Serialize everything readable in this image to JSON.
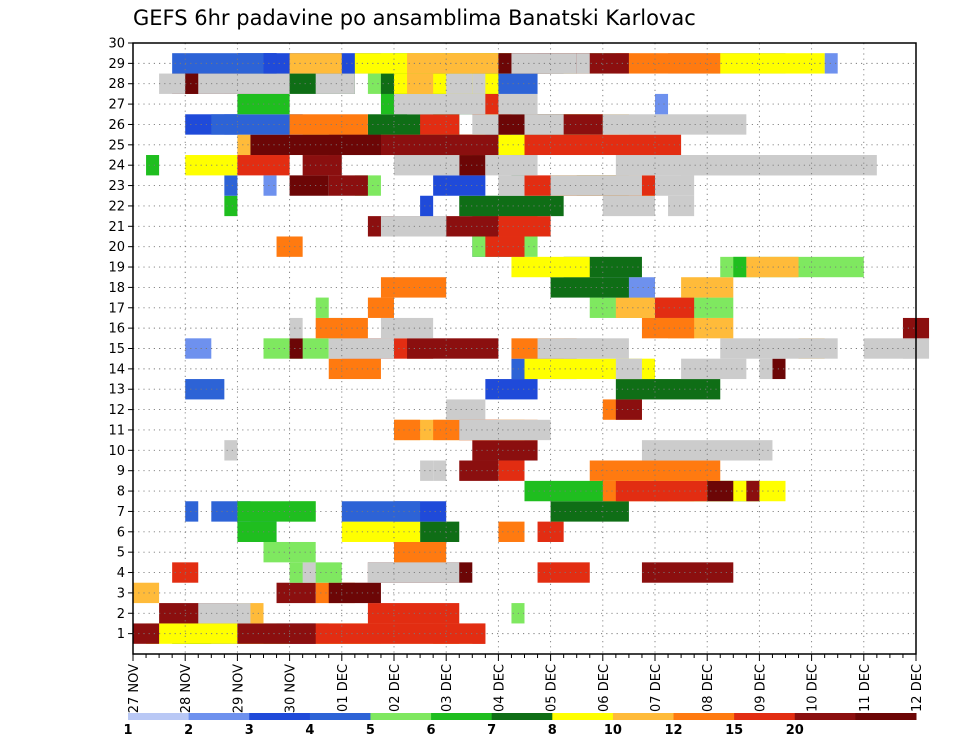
{
  "chart_data": {
    "type": "heatmap",
    "title": "GEFS 6hr padavine po ansamblima Banatski Karlovac",
    "x_tick_labels": [
      "27 NOV",
      "28 NOV",
      "29 NOV",
      "30 NOV",
      "01 DEC",
      "02 DEC",
      "03 DEC",
      "04 DEC",
      "05 DEC",
      "06 DEC",
      "07 DEC",
      "08 DEC",
      "09 DEC",
      "10 DEC",
      "11 DEC",
      "12 DEC"
    ],
    "y_tick_labels": [
      "1",
      "2",
      "3",
      "4",
      "5",
      "6",
      "7",
      "8",
      "9",
      "10",
      "11",
      "12",
      "13",
      "14",
      "15",
      "16",
      "17",
      "18",
      "19",
      "20",
      "21",
      "22",
      "23",
      "24",
      "25",
      "26",
      "27",
      "28",
      "29",
      "30"
    ],
    "x_steps_per_day": 4,
    "x_steps_total": 60,
    "y_range": [
      0,
      30
    ],
    "grid": true,
    "colorbar": {
      "labels": [
        "1",
        "2",
        "3",
        "4",
        "5",
        "6",
        "7",
        "8",
        "10",
        "12",
        "15",
        "20"
      ],
      "colors": [
        "#b9c8f5",
        "#6e91ee",
        "#1f4ad9",
        "#2d63d6",
        "#7fe860",
        "#1fbe1f",
        "#0f6e16",
        "#ffff00",
        "#ffbb3a",
        "#ff7a10",
        "#e22d12",
        "#8b0f0f",
        "#6c0606"
      ]
    },
    "cells": [
      [
        1,
        2,
        6,
        2
      ],
      [
        1,
        4,
        13,
        2
      ],
      [
        1,
        2,
        10,
        4
      ],
      [
        1,
        3,
        11,
        4
      ],
      [
        1,
        1,
        7,
        1
      ],
      [
        1,
        5,
        4,
        2
      ],
      [
        1,
        6,
        3,
        3
      ],
      [
        1,
        7,
        14,
        4
      ],
      [
        1,
        7,
        1,
        11
      ],
      [
        1,
        8,
        14,
        5
      ],
      [
        1,
        8,
        18,
        8
      ],
      [
        1,
        9,
        23,
        2
      ],
      [
        1,
        10,
        26,
        1
      ],
      [
        1,
        10,
        12,
        15
      ],
      [
        1,
        11,
        0,
        2
      ],
      [
        1,
        11,
        8,
        6
      ],
      [
        2,
        4,
        29,
        1
      ],
      [
        2,
        8,
        5,
        5
      ],
      [
        2,
        10,
        18,
        7
      ],
      [
        2,
        11,
        2,
        6
      ],
      [
        2,
        13,
        5,
        4
      ],
      [
        3,
        5,
        30,
        0
      ],
      [
        3,
        8,
        0,
        2
      ],
      [
        3,
        9,
        14,
        3
      ],
      [
        3,
        11,
        11,
        3
      ],
      [
        3,
        12,
        15,
        4
      ],
      [
        4,
        4,
        12,
        4
      ],
      [
        4,
        10,
        3,
        2
      ],
      [
        4,
        10,
        31,
        4
      ],
      [
        4,
        11,
        39,
        7
      ],
      [
        4,
        12,
        18,
        8
      ],
      [
        4,
        13,
        18,
        7
      ],
      [
        4,
        14,
        13,
        1
      ],
      [
        5,
        4,
        10,
        4
      ],
      [
        5,
        9,
        20,
        4
      ],
      [
        6,
        3,
        9,
        2
      ],
      [
        6,
        5,
        8,
        3
      ],
      [
        6,
        6,
        22,
        3
      ],
      [
        6,
        7,
        16,
        6
      ],
      [
        6,
        9,
        28,
        2
      ],
      [
        6,
        10,
        31,
        2
      ],
      [
        7,
        2,
        20,
        4
      ],
      [
        7,
        3,
        4,
        1
      ],
      [
        7,
        3,
        6,
        3
      ],
      [
        7,
        3,
        16,
        6
      ],
      [
        7,
        4,
        12,
        2
      ],
      [
        7,
        5,
        8,
        6
      ],
      [
        7,
        6,
        32,
        6
      ],
      [
        8,
        5,
        30,
        8
      ],
      [
        8,
        6,
        40,
        8
      ],
      [
        8,
        7,
        41,
        9
      ],
      [
        8,
        9,
        36,
        7
      ],
      [
        8,
        10,
        37,
        7
      ],
      [
        8,
        11,
        47,
        1
      ],
      [
        8,
        12,
        44,
        2
      ],
      [
        9,
        9,
        35,
        10
      ],
      [
        9,
        10,
        28,
        2
      ],
      [
        9,
        11,
        25,
        3
      ],
      [
        9,
        14,
        23,
        1
      ],
      [
        9,
        16,
        22,
        1
      ],
      [
        10,
        6,
        8,
        0
      ],
      [
        10,
        9,
        25,
        0
      ],
      [
        10,
        11,
        26,
        5
      ],
      [
        10,
        13,
        7,
        1
      ],
      [
        10,
        14,
        39,
        10
      ],
      [
        11,
        8,
        20,
        10
      ],
      [
        11,
        9,
        20,
        2
      ],
      [
        11,
        9,
        23,
        8
      ],
      [
        11,
        10,
        25,
        3
      ],
      [
        11,
        15,
        25,
        7
      ],
      [
        12,
        9,
        36,
        3
      ],
      [
        12,
        11,
        37,
        2
      ],
      [
        12,
        13,
        24,
        3
      ],
      [
        13,
        2,
        27,
        4
      ],
      [
        13,
        3,
        4,
        3
      ],
      [
        13,
        5,
        28,
        0
      ],
      [
        13,
        6,
        37,
        8
      ],
      [
        14,
        3,
        29,
        5
      ],
      [
        14,
        7,
        30,
        10
      ],
      [
        14,
        9,
        15,
        4
      ],
      [
        14,
        12,
        49,
        1
      ],
      [
        14,
        13,
        42,
        5
      ],
      [
        14,
        14,
        37,
        2
      ],
      [
        14,
        15,
        48,
        1
      ],
      [
        15,
        1,
        4,
        2
      ],
      [
        15,
        4,
        10,
        5
      ],
      [
        15,
        8,
        51,
        2
      ],
      [
        15,
        9,
        29,
        5
      ],
      [
        15,
        10,
        16,
        7
      ],
      [
        15,
        11,
        21,
        7
      ],
      [
        15,
        12,
        12,
        1
      ],
      [
        15,
        13,
        15,
        5
      ],
      [
        15,
        15,
        33,
        5
      ],
      [
        15,
        16,
        31,
        5
      ],
      [
        15,
        17,
        45,
        9
      ],
      [
        15,
        18,
        59,
        1
      ],
      [
        15,
        19,
        56,
        5
      ],
      [
        16,
        4,
        15,
        1
      ],
      [
        16,
        8,
        41,
        5
      ],
      [
        16,
        9,
        14,
        4
      ],
      [
        16,
        9,
        39,
        4
      ],
      [
        16,
        11,
        59,
        2
      ],
      [
        16,
        13,
        12,
        1
      ],
      [
        16,
        14,
        19,
        4
      ],
      [
        17,
        4,
        14,
        1
      ],
      [
        17,
        4,
        35,
        11
      ],
      [
        17,
        8,
        37,
        3
      ],
      [
        17,
        9,
        18,
        2
      ],
      [
        17,
        10,
        40,
        3
      ],
      [
        18,
        1,
        36,
        4
      ],
      [
        18,
        6,
        32,
        6
      ],
      [
        18,
        8,
        42,
        4
      ],
      [
        18,
        9,
        19,
        5
      ],
      [
        19,
        4,
        45,
        11
      ],
      [
        19,
        5,
        46,
        1
      ],
      [
        19,
        6,
        33,
        6
      ],
      [
        19,
        7,
        29,
        6
      ],
      [
        19,
        8,
        47,
        4
      ],
      [
        20,
        3,
        26,
        3
      ],
      [
        20,
        4,
        26,
        5
      ],
      [
        20,
        9,
        11,
        2
      ],
      [
        20,
        10,
        27,
        3
      ],
      [
        21,
        8,
        27,
        4
      ],
      [
        21,
        9,
        28,
        3
      ],
      [
        21,
        10,
        26,
        6
      ],
      [
        21,
        11,
        18,
        10
      ],
      [
        21,
        13,
        19,
        5
      ],
      [
        21,
        14,
        20,
        4
      ],
      [
        22,
        2,
        22,
        1
      ],
      [
        22,
        5,
        7,
        1
      ],
      [
        22,
        6,
        25,
        8
      ],
      [
        22,
        13,
        36,
        4
      ],
      [
        22,
        15,
        41,
        2
      ],
      [
        23,
        1,
        10,
        1
      ],
      [
        23,
        2,
        23,
        4
      ],
      [
        23,
        3,
        7,
        1
      ],
      [
        23,
        4,
        17,
        2
      ],
      [
        23,
        6,
        34,
        4
      ],
      [
        23,
        7,
        32,
        8
      ],
      [
        23,
        10,
        30,
        10
      ],
      [
        23,
        11,
        15,
        3
      ],
      [
        23,
        12,
        12,
        3
      ],
      [
        23,
        13,
        32,
        7
      ],
      [
        23,
        14,
        28,
        2
      ],
      [
        23,
        15,
        40,
        3
      ],
      [
        24,
        1,
        23,
        1
      ],
      [
        24,
        5,
        1,
        1
      ],
      [
        24,
        6,
        29,
        1
      ],
      [
        24,
        7,
        4,
        4
      ],
      [
        24,
        10,
        8,
        4
      ],
      [
        24,
        11,
        13,
        3
      ],
      [
        24,
        12,
        25,
        2
      ],
      [
        24,
        13,
        27,
        4
      ],
      [
        24,
        14,
        23,
        2
      ],
      [
        24,
        15,
        20,
        4
      ],
      [
        24,
        17,
        50,
        1
      ],
      [
        24,
        18,
        48,
        9
      ],
      [
        24,
        19,
        37,
        10
      ],
      [
        24,
        20,
        44,
        8
      ],
      [
        24,
        21,
        45,
        7
      ],
      [
        24,
        22,
        42,
        2
      ],
      [
        24,
        23,
        46,
        5
      ],
      [
        25,
        1,
        16,
        3
      ],
      [
        25,
        4,
        13,
        2
      ],
      [
        25,
        7,
        25,
        5
      ],
      [
        25,
        8,
        8,
        1
      ],
      [
        25,
        9,
        19,
        7
      ],
      [
        25,
        10,
        30,
        12
      ],
      [
        25,
        11,
        19,
        9
      ],
      [
        25,
        12,
        15,
        4
      ],
      [
        25,
        12,
        9,
        10
      ],
      [
        26,
        1,
        7,
        1
      ],
      [
        26,
        1,
        27,
        3
      ],
      [
        26,
        2,
        4,
        4
      ],
      [
        26,
        3,
        6,
        7
      ],
      [
        26,
        4,
        28,
        7
      ],
      [
        26,
        6,
        18,
        7
      ],
      [
        26,
        8,
        33,
        5
      ],
      [
        26,
        9,
        28,
        1
      ],
      [
        26,
        9,
        12,
        6
      ],
      [
        26,
        10,
        22,
        3
      ],
      [
        26,
        11,
        30,
        6
      ],
      [
        26,
        12,
        27,
        3
      ],
      [
        26,
        13,
        36,
        11
      ],
      [
        26,
        15,
        30,
        3
      ],
      [
        26,
        16,
        26,
        2
      ],
      [
        27,
        1,
        40,
        1
      ],
      [
        27,
        4,
        23,
        1
      ],
      [
        27,
        5,
        8,
        4
      ],
      [
        27,
        5,
        19,
        2
      ],
      [
        27,
        6,
        20,
        7
      ],
      [
        27,
        7,
        27,
        1
      ],
      [
        27,
        8,
        26,
        2
      ],
      [
        27,
        10,
        26,
        3
      ],
      [
        27,
        13,
        21,
        6
      ],
      [
        27,
        14,
        20,
        3
      ],
      [
        27,
        14,
        28,
        3
      ],
      [
        28,
        1,
        8,
        1
      ],
      [
        28,
        3,
        7,
        1
      ],
      [
        28,
        3,
        28,
        3
      ],
      [
        28,
        4,
        18,
        2
      ],
      [
        28,
        5,
        19,
        4
      ],
      [
        28,
        6,
        19,
        9
      ],
      [
        28,
        6,
        9,
        8
      ],
      [
        28,
        7,
        20,
        8
      ],
      [
        28,
        8,
        21,
        2
      ],
      [
        28,
        11,
        3,
        6
      ],
      [
        28,
        12,
        3,
        5
      ],
      [
        28,
        13,
        5,
        7
      ],
      [
        28,
        14,
        2,
        2
      ],
      [
        28,
        15,
        26,
        1
      ],
      [
        28,
        16,
        14,
        3
      ],
      [
        28,
        17,
        24,
        2
      ],
      [
        29,
        1,
        26,
        7
      ],
      [
        29,
        1,
        41,
        9
      ],
      [
        29,
        1,
        53,
        1
      ],
      [
        29,
        2,
        10,
        1
      ],
      [
        29,
        2,
        10,
        9
      ],
      [
        29,
        2,
        8,
        3
      ],
      [
        29,
        3,
        3,
        7
      ],
      [
        29,
        3,
        30,
        3
      ],
      [
        29,
        4,
        19,
        1
      ],
      [
        29,
        4,
        27,
        7
      ],
      [
        29,
        4,
        31,
        6
      ],
      [
        29,
        5,
        20,
        3
      ],
      [
        29,
        6,
        23,
        5
      ],
      [
        29,
        7,
        44,
        9
      ],
      [
        29,
        7,
        17,
        11
      ],
      [
        29,
        8,
        21,
        8
      ],
      [
        29,
        8,
        12,
        4
      ],
      [
        29,
        9,
        37,
        8
      ],
      [
        29,
        10,
        29,
        6
      ],
      [
        29,
        11,
        31,
        7
      ],
      [
        29,
        12,
        28,
        4
      ],
      [
        29,
        13,
        29,
        5
      ],
      [
        29,
        14,
        34,
        1
      ]
    ]
  }
}
